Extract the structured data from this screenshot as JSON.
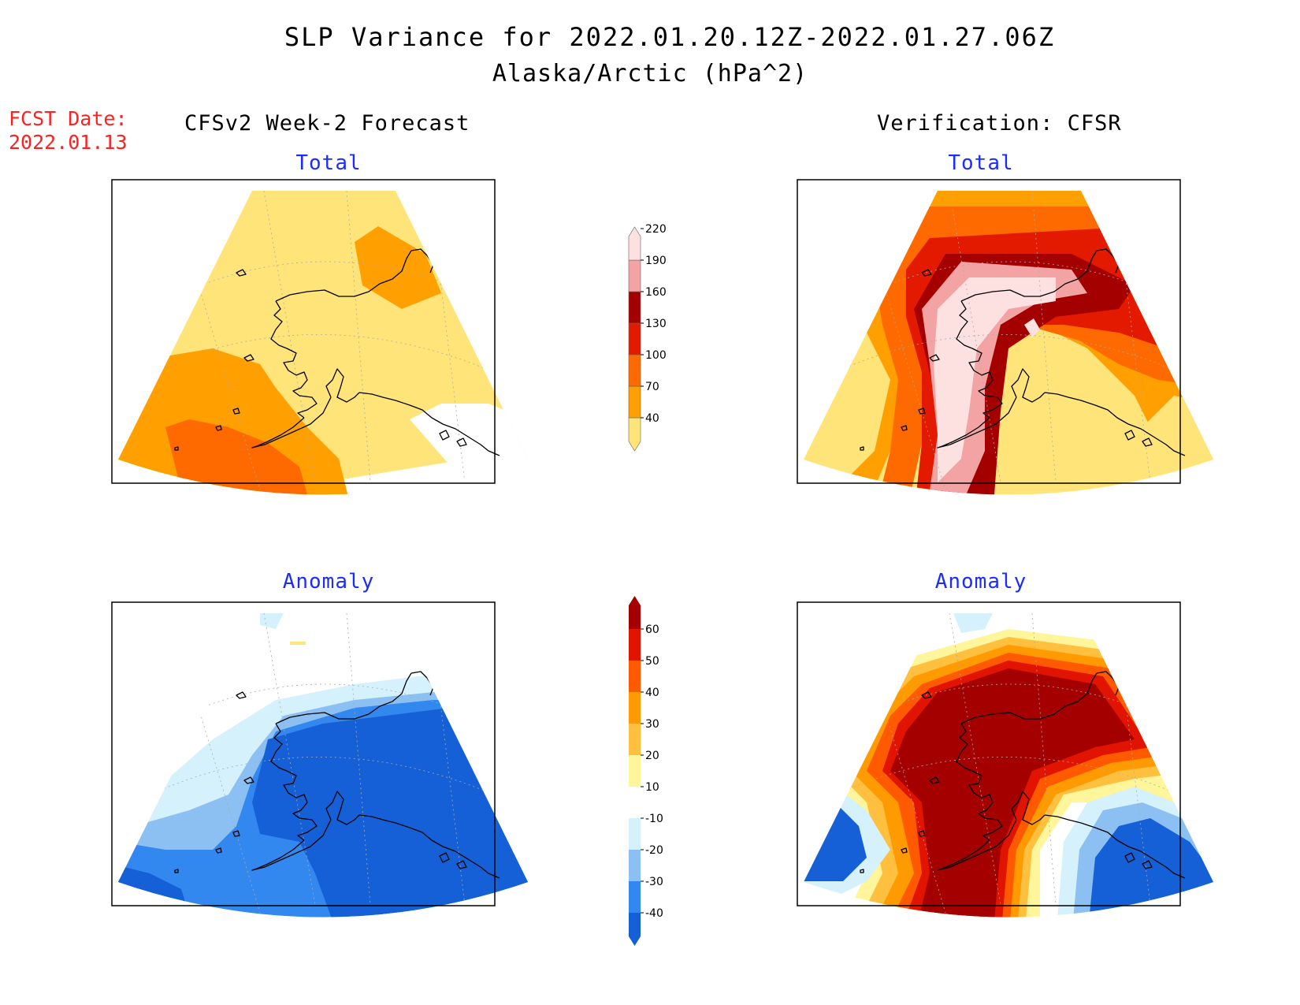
{
  "title": {
    "line1": "SLP Variance for 2022.01.20.12Z-2022.01.27.06Z",
    "line2": "Alaska/Arctic (hPa^2)"
  },
  "fcst_date": {
    "label": "FCST Date:",
    "value": "2022.01.13"
  },
  "columns": {
    "left_heading": "CFSv2 Week-2 Forecast",
    "right_heading": "Verification: CFSR"
  },
  "panels": {
    "forecast_total": {
      "title": "Total"
    },
    "verification_total": {
      "title": "Total"
    },
    "forecast_anomaly": {
      "title": "Anomaly"
    },
    "verification_anomaly": {
      "title": "Anomaly"
    }
  },
  "colorbars": {
    "total": {
      "labels": [
        "40",
        "70",
        "100",
        "130",
        "160",
        "190",
        "220"
      ],
      "colors": [
        "#ffe47a",
        "#ffa000",
        "#ff6a00",
        "#e31a00",
        "#a50000",
        "#f3a3a3",
        "#fde0e0"
      ]
    },
    "anomaly": {
      "labels": [
        "-40",
        "-30",
        "-20",
        "-10",
        "10",
        "20",
        "30",
        "40",
        "50",
        "60"
      ],
      "colors": [
        "#1560d6",
        "#3388f0",
        "#8cc0f2",
        "#d5f2fc",
        "#ffffff",
        "#fff59a",
        "#ffc040",
        "#ff9a00",
        "#ff5a00",
        "#e01400",
        "#a50000"
      ]
    }
  },
  "map_colors": {
    "total_low": "#ffe47a",
    "total_70": "#ffa000",
    "total_100": "#ff6a00",
    "total_130": "#e31a00",
    "total_160": "#a50000",
    "total_190": "#f3a3a3",
    "total_220": "#fde0e0",
    "anom_neg40": "#1560d6",
    "anom_neg30": "#3388f0",
    "anom_neg20": "#8cc0f2",
    "anom_neg10": "#d5f2fc",
    "anom_pos60": "#a50000",
    "anom_pos50": "#e01400",
    "anom_pos40": "#ff5a00",
    "anom_pos30": "#ff9a00",
    "anom_pos20": "#ffc040",
    "anom_pos10": "#fff59a"
  }
}
